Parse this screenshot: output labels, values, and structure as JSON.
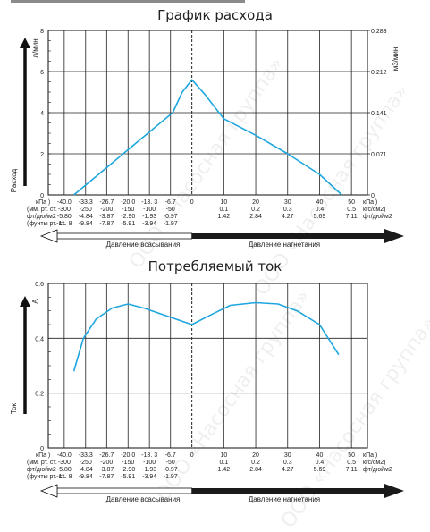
{
  "watermark": "ООО «Насосная группа»",
  "x_tick_labels": {
    "kpa": [
      "-40.0",
      "-33.3",
      "-26.7",
      "-20.0",
      "-13. 3",
      "-6.7",
      "0",
      "10",
      "20",
      "30",
      "40",
      "50"
    ],
    "suction_mmhg": [
      "-300",
      "-250",
      "-200",
      "-150",
      "-100",
      "-50"
    ],
    "suction_ftin2": [
      "-5.80",
      "-4.84",
      "-3.87",
      "-2.90",
      "-1.93",
      "-0.97"
    ],
    "suction_ft": [
      "-11. 8",
      "-9.84",
      "-7.87",
      "-5.91",
      "-3.94",
      "-1.97"
    ],
    "discharge_kgf": [
      "0.1",
      "0.2",
      "0.3",
      "0.4",
      "0.5"
    ],
    "discharge_ftin2": [
      "1.42",
      "2.84",
      "4.27",
      "5.69",
      "7.11"
    ]
  },
  "row_labels": {
    "kpa_left": "кПа )",
    "mmhg": "(мм. рт. ст.",
    "ftin2": "фт/дюйм2",
    "ft": "(фунты рт. ст."
  },
  "right_units": {
    "kpa": "кПа )",
    "kgf": "кгс/см2)",
    "ftin2": "фт/дюйм2"
  },
  "footer": {
    "suction": "Давление всасывания",
    "discharge": "Давление нагнетания"
  },
  "chart_data": [
    {
      "type": "line",
      "title": "График расхода",
      "ylabel": "л/мин",
      "ylabel_side": "Расход",
      "ylabel_right": "м3/мин",
      "xlim": [
        -45,
        55
      ],
      "ylim": [
        0,
        8
      ],
      "y_ticks": [
        "0",
        "2",
        "4",
        "6",
        "8"
      ],
      "y_right_ticks": [
        "0",
        "0.071",
        "0.141",
        "0.212",
        "0.283"
      ],
      "grid": true,
      "series": [
        {
          "color": "#1ea6de",
          "points": [
            [
              -37,
              0
            ],
            [
              -30,
              0.9
            ],
            [
              -20,
              2.2
            ],
            [
              -6,
              4
            ],
            [
              -3,
              5
            ],
            [
              0,
              5.6
            ],
            [
              4,
              4.9
            ],
            [
              10,
              3.7
            ],
            [
              20,
              2.9
            ],
            [
              30,
              2.0
            ],
            [
              40,
              1.0
            ],
            [
              47,
              0
            ]
          ]
        }
      ]
    },
    {
      "type": "line",
      "title": "Потребляемый ток",
      "ylabel": "A",
      "ylabel_side": "Ток",
      "xlim": [
        -45,
        55
      ],
      "ylim": [
        0,
        0.6
      ],
      "y_ticks": [
        "0",
        "0.2",
        "0.4",
        "0.6"
      ],
      "grid": true,
      "series": [
        {
          "color": "#1ea6de",
          "points": [
            [
              -37,
              0.28
            ],
            [
              -34,
              0.4
            ],
            [
              -30,
              0.47
            ],
            [
              -25,
              0.51
            ],
            [
              -20,
              0.525
            ],
            [
              -15,
              0.51
            ],
            [
              -10,
              0.49
            ],
            [
              -5,
              0.47
            ],
            [
              0,
              0.45
            ],
            [
              5,
              0.48
            ],
            [
              12,
              0.52
            ],
            [
              20,
              0.53
            ],
            [
              27,
              0.525
            ],
            [
              33,
              0.5
            ],
            [
              40,
              0.45
            ],
            [
              46,
              0.34
            ]
          ]
        }
      ]
    }
  ]
}
